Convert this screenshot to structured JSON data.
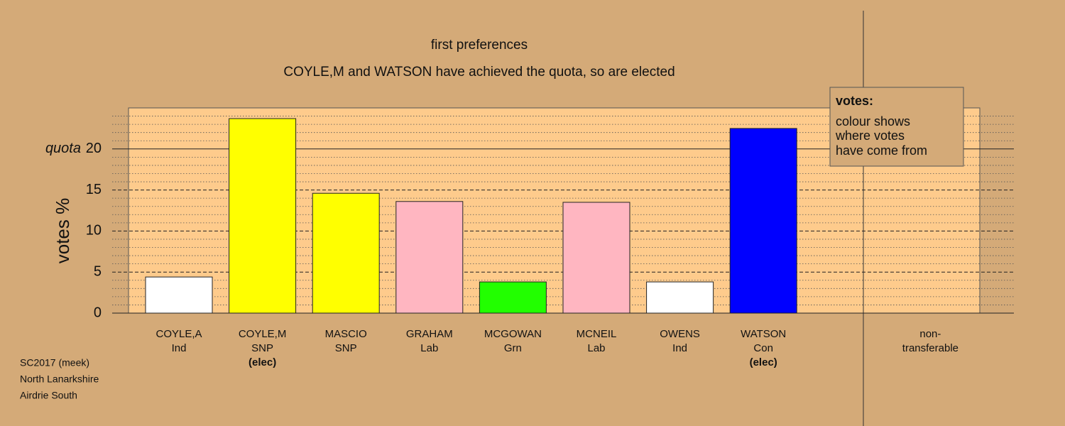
{
  "chart_data": {
    "type": "bar",
    "title": "first preferences",
    "subtitle": "COYLE,M and WATSON have achieved the quota, so are elected",
    "y_label": "votes %",
    "categories": [
      "COYLE,A",
      "COYLE,M",
      "MASCIO",
      "GRAHAM",
      "MCGOWAN",
      "MCNEIL",
      "OWENS",
      "WATSON",
      "non-transferable"
    ],
    "parties": [
      "Ind",
      "SNP",
      "SNP",
      "Lab",
      "Grn",
      "Lab",
      "Ind",
      "Con",
      null
    ],
    "status": [
      null,
      "(elec)",
      null,
      null,
      null,
      null,
      null,
      "(elec)",
      null
    ],
    "values": [
      4.4,
      23.7,
      14.6,
      13.6,
      3.8,
      13.5,
      3.8,
      22.5,
      0
    ],
    "colors": [
      "#ffffff",
      "#ffff00",
      "#ffff00",
      "#ffb6c1",
      "#22ff00",
      "#ffb6c1",
      "#ffffff",
      "#0000ff",
      "#ffffff"
    ],
    "ylim": [
      0,
      25
    ],
    "yticks": [
      0,
      5,
      10,
      15,
      20
    ],
    "minor_yticks": [
      1,
      2,
      3,
      4,
      6,
      7,
      8,
      9,
      11,
      12,
      13,
      14,
      16,
      17,
      18,
      19,
      21,
      22,
      23,
      24
    ],
    "quota": 20,
    "quota_label": "quota",
    "legend": {
      "title": "votes:",
      "lines": [
        "colour shows",
        "where votes",
        "have come from"
      ]
    },
    "notes": [
      "SC2017 (meek)",
      "North Lanarkshire",
      "Airdrie South"
    ]
  }
}
